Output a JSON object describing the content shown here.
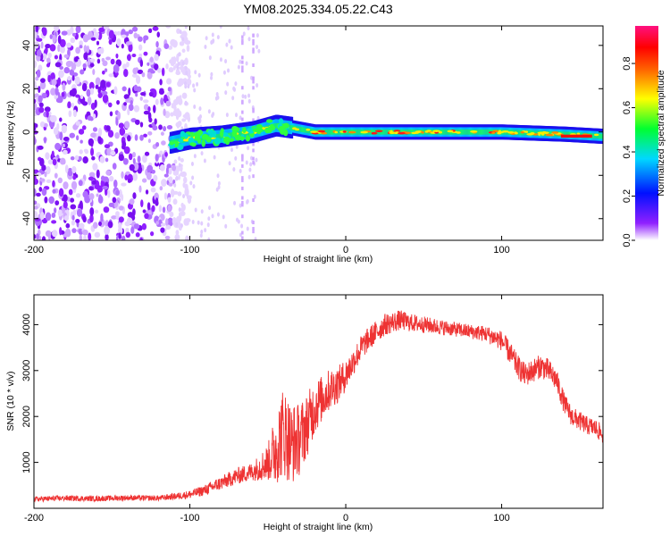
{
  "title": "YM08.2025.334.05.22.C43",
  "chart_data": [
    {
      "type": "heatmap",
      "xlabel": "Height of straight line (km)",
      "ylabel": "Frequency (Hz)",
      "xlim": [
        -200,
        165
      ],
      "ylim": [
        -50,
        49
      ],
      "xticks": [
        "-200",
        "-100",
        "0",
        "100"
      ],
      "yticks": [
        "-40",
        "-20",
        "0",
        "20",
        "40"
      ],
      "xtick_values": [
        -200,
        -100,
        0,
        100
      ],
      "ytick_values": [
        -40,
        -20,
        0,
        20,
        40
      ],
      "signal_start_km": -113,
      "noise_end_km": -110,
      "ridge": {
        "x": [
          -113,
          -100,
          -80,
          -60,
          -45,
          -35,
          -20,
          0,
          50,
          100,
          140,
          165
        ],
        "freq": [
          -5,
          -3,
          -2,
          0,
          3,
          2,
          0,
          0,
          0,
          0,
          -1,
          -2
        ]
      },
      "colorbar": {
        "label": "Normalized spectral amplitude",
        "ticks": [
          "0.0",
          "0.2",
          "0.4",
          "0.6",
          "0.8"
        ],
        "tick_values": [
          0.0,
          0.2,
          0.4,
          0.6,
          0.8
        ],
        "range": [
          0,
          0.97
        ]
      }
    },
    {
      "type": "line",
      "xlabel": "Height of straight line (km)",
      "ylabel": "SNR (10 * v/v)",
      "xlim": [
        -200,
        165
      ],
      "ylim": [
        0,
        4650
      ],
      "xticks": [
        "-200",
        "-100",
        "0",
        "100"
      ],
      "yticks": [
        "1000",
        "2000",
        "3000",
        "4000"
      ],
      "xtick_values": [
        -200,
        -100,
        0,
        100
      ],
      "ytick_values": [
        1000,
        2000,
        3000,
        4000
      ],
      "color": "#ee3333",
      "series": [
        {
          "name": "SNR",
          "x": [
            -200,
            -180,
            -160,
            -140,
            -120,
            -110,
            -100,
            -90,
            -80,
            -70,
            -60,
            -50,
            -45,
            -40,
            -35,
            -30,
            -25,
            -20,
            -15,
            -10,
            -5,
            0,
            5,
            10,
            15,
            20,
            25,
            30,
            35,
            40,
            50,
            60,
            70,
            80,
            90,
            100,
            105,
            110,
            115,
            120,
            125,
            130,
            135,
            140,
            145,
            150,
            155,
            160,
            165
          ],
          "values": [
            200,
            220,
            210,
            230,
            220,
            260,
            300,
            400,
            550,
            700,
            800,
            1000,
            1300,
            1700,
            1400,
            1500,
            1800,
            2200,
            2400,
            2600,
            2700,
            2900,
            3200,
            3500,
            3700,
            3850,
            4000,
            4050,
            4100,
            4050,
            4000,
            3950,
            3900,
            3850,
            3800,
            3650,
            3400,
            3100,
            2900,
            3000,
            3100,
            3000,
            2800,
            2300,
            2000,
            1900,
            1800,
            1750,
            1600
          ],
          "jitter": [
            60,
            60,
            60,
            60,
            60,
            70,
            90,
            120,
            150,
            180,
            200,
            400,
            800,
            1000,
            900,
            800,
            700,
            600,
            500,
            450,
            400,
            350,
            300,
            280,
            260,
            250,
            240,
            230,
            220,
            200,
            180,
            170,
            160,
            160,
            180,
            220,
            250,
            260,
            260,
            260,
            260,
            260,
            250,
            230,
            220,
            210,
            200,
            200,
            200
          ]
        }
      ]
    }
  ]
}
